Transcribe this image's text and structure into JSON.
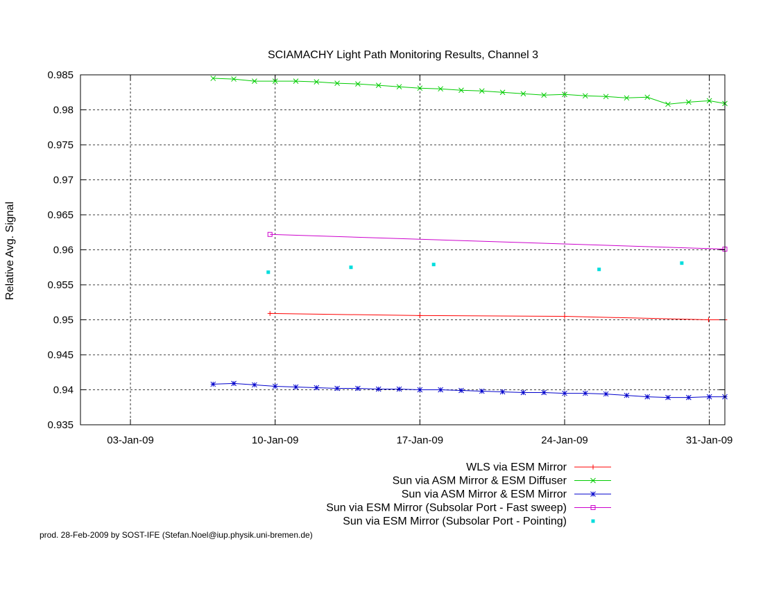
{
  "chart_data": {
    "type": "line",
    "title": "SCIAMACHY Light Path Monitoring Results, Channel 3",
    "xlabel": "",
    "ylabel": "Relative Avg. Signal",
    "xlim": [
      "2009-01-00T14:00",
      "2009-01-31T18:00"
    ],
    "ylim": [
      0.935,
      0.985
    ],
    "grid": true,
    "legend_position": "bottom-right",
    "x_ticks": [
      "03-Jan-09",
      "10-Jan-09",
      "17-Jan-09",
      "24-Jan-09",
      "31-Jan-09"
    ],
    "x_tick_dates": [
      "2009-01-03",
      "2009-01-10",
      "2009-01-17",
      "2009-01-24",
      "2009-01-31"
    ],
    "y_ticks": [
      "0.935",
      "0.94",
      "0.945",
      "0.95",
      "0.955",
      "0.96",
      "0.965",
      "0.97",
      "0.975",
      "0.98",
      "0.985"
    ],
    "series": [
      {
        "name": "WLS via ESM Mirror",
        "color": "#ff0000",
        "marker": "plus",
        "style": "linespoints",
        "x": [
          "2009-01-09T18:00",
          "2009-01-17T00:00",
          "2009-01-24T00:00",
          "2009-01-30T23:00",
          "2009-01-31T18:00"
        ],
        "y": [
          0.9509,
          0.9506,
          0.9505,
          0.95,
          0.95
        ]
      },
      {
        "name": "Sun via ASM Mirror & ESM Diffuser",
        "color": "#00cc00",
        "marker": "cross",
        "style": "linespoints",
        "x": [
          "2009-01-07T00:00",
          "2009-01-08T00:00",
          "2009-01-09T00:00",
          "2009-01-10T00:00",
          "2009-01-11T00:00",
          "2009-01-12T00:00",
          "2009-01-13T00:00",
          "2009-01-14T00:00",
          "2009-01-15T00:00",
          "2009-01-16T00:00",
          "2009-01-17T00:00",
          "2009-01-18T00:00",
          "2009-01-19T00:00",
          "2009-01-20T00:00",
          "2009-01-21T00:00",
          "2009-01-22T00:00",
          "2009-01-23T00:00",
          "2009-01-24T00:00",
          "2009-01-25T00:00",
          "2009-01-26T00:00",
          "2009-01-27T00:00",
          "2009-01-28T00:00",
          "2009-01-29T00:00",
          "2009-01-30T00:00",
          "2009-01-31T00:00",
          "2009-01-31T18:00"
        ],
        "y": [
          0.9845,
          0.9844,
          0.9841,
          0.9841,
          0.9841,
          0.984,
          0.9838,
          0.9837,
          0.9835,
          0.9833,
          0.9831,
          0.983,
          0.9828,
          0.9827,
          0.9825,
          0.9823,
          0.9821,
          0.9822,
          0.982,
          0.9819,
          0.9817,
          0.9818,
          0.9808,
          0.9811,
          0.9813,
          0.9809
        ]
      },
      {
        "name": "Sun via ASM Mirror & ESM Mirror",
        "color": "#0000cc",
        "marker": "star",
        "style": "linespoints",
        "x": [
          "2009-01-07T00:00",
          "2009-01-08T00:00",
          "2009-01-09T00:00",
          "2009-01-10T00:00",
          "2009-01-11T00:00",
          "2009-01-12T00:00",
          "2009-01-13T00:00",
          "2009-01-14T00:00",
          "2009-01-15T00:00",
          "2009-01-16T00:00",
          "2009-01-17T00:00",
          "2009-01-18T00:00",
          "2009-01-19T00:00",
          "2009-01-20T00:00",
          "2009-01-21T00:00",
          "2009-01-22T00:00",
          "2009-01-23T00:00",
          "2009-01-24T00:00",
          "2009-01-25T00:00",
          "2009-01-26T00:00",
          "2009-01-27T00:00",
          "2009-01-28T00:00",
          "2009-01-29T00:00",
          "2009-01-30T00:00",
          "2009-01-31T00:00",
          "2009-01-31T18:00"
        ],
        "y": [
          0.9408,
          0.9409,
          0.9407,
          0.9405,
          0.9404,
          0.9403,
          0.9402,
          0.9402,
          0.9401,
          0.9401,
          0.94,
          0.94,
          0.9399,
          0.9398,
          0.9397,
          0.9396,
          0.9396,
          0.9395,
          0.9395,
          0.9394,
          0.9392,
          0.939,
          0.9389,
          0.9389,
          0.939,
          0.939
        ]
      },
      {
        "name": "Sun via ESM Mirror (Subsolar Port - Fast sweep)",
        "color": "#cc00cc",
        "marker": "square",
        "style": "linespoints",
        "x": [
          "2009-01-09T18:00",
          "2009-01-31T18:00"
        ],
        "y": [
          0.9622,
          0.9601
        ]
      },
      {
        "name": "Sun via ESM Mirror (Subsolar Port - Pointing)",
        "color": "#00dddd",
        "marker": "dot",
        "style": "points",
        "x": [
          "2009-01-09T16:00",
          "2009-01-13T16:00",
          "2009-01-17T16:00",
          "2009-01-25T16:00",
          "2009-01-29T16:00"
        ],
        "y": [
          0.9568,
          0.9575,
          0.9579,
          0.9572,
          0.9581
        ]
      }
    ]
  },
  "footer": "prod. 28-Feb-2009 by SOST-IFE (Stefan.Noel@iup.physik.uni-bremen.de)"
}
